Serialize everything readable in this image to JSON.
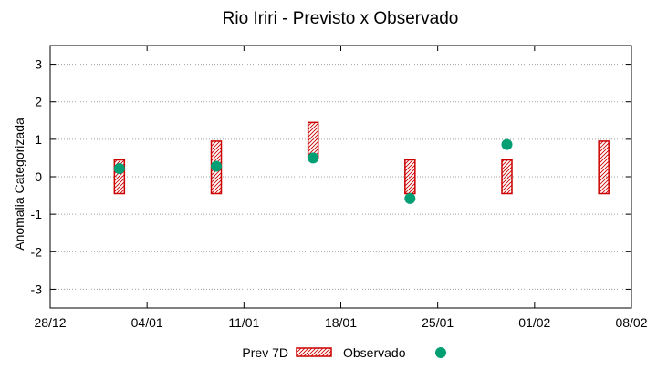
{
  "chart_data": {
    "type": "range-bar-with-points",
    "title": "Rio Iriri - Previsto x Observado",
    "xlabel": "",
    "ylabel": "Anomalia Categorizada",
    "ylim": [
      -3.5,
      3.5
    ],
    "xlim_days": [
      0,
      42
    ],
    "grid": "horizontal-dotted",
    "legend_position": "bottom-center",
    "x_ticks": [
      {
        "day": 0,
        "label": "28/12"
      },
      {
        "day": 7,
        "label": "04/01"
      },
      {
        "day": 14,
        "label": "11/01"
      },
      {
        "day": 21,
        "label": "18/01"
      },
      {
        "day": 28,
        "label": "25/01"
      },
      {
        "day": 35,
        "label": "01/02"
      },
      {
        "day": 42,
        "label": "08/02"
      }
    ],
    "y_ticks": [
      {
        "value": 3,
        "label": "3"
      },
      {
        "value": 2,
        "label": "2"
      },
      {
        "value": 1,
        "label": "1"
      },
      {
        "value": 0,
        "label": "0"
      },
      {
        "value": -1,
        "label": "-1"
      },
      {
        "value": -2,
        "label": "-2"
      },
      {
        "value": -3,
        "label": "-3"
      }
    ],
    "series": [
      {
        "name": "Prev 7D",
        "kind": "range-bar",
        "color": "#cc0000",
        "bars": [
          {
            "day": 5,
            "low": -0.45,
            "high": 0.45
          },
          {
            "day": 12,
            "low": -0.45,
            "high": 0.95
          },
          {
            "day": 19,
            "low": 0.5,
            "high": 1.45
          },
          {
            "day": 26,
            "low": -0.45,
            "high": 0.45
          },
          {
            "day": 33,
            "low": -0.45,
            "high": 0.45
          },
          {
            "day": 40,
            "low": -0.45,
            "high": 0.95
          }
        ]
      },
      {
        "name": "Observado",
        "kind": "point",
        "color": "#009e73",
        "points": [
          {
            "day": 5,
            "value": 0.22
          },
          {
            "day": 12,
            "value": 0.28
          },
          {
            "day": 19,
            "value": 0.5
          },
          {
            "day": 26,
            "value": -0.58
          },
          {
            "day": 33,
            "value": 0.86
          }
        ]
      }
    ]
  }
}
